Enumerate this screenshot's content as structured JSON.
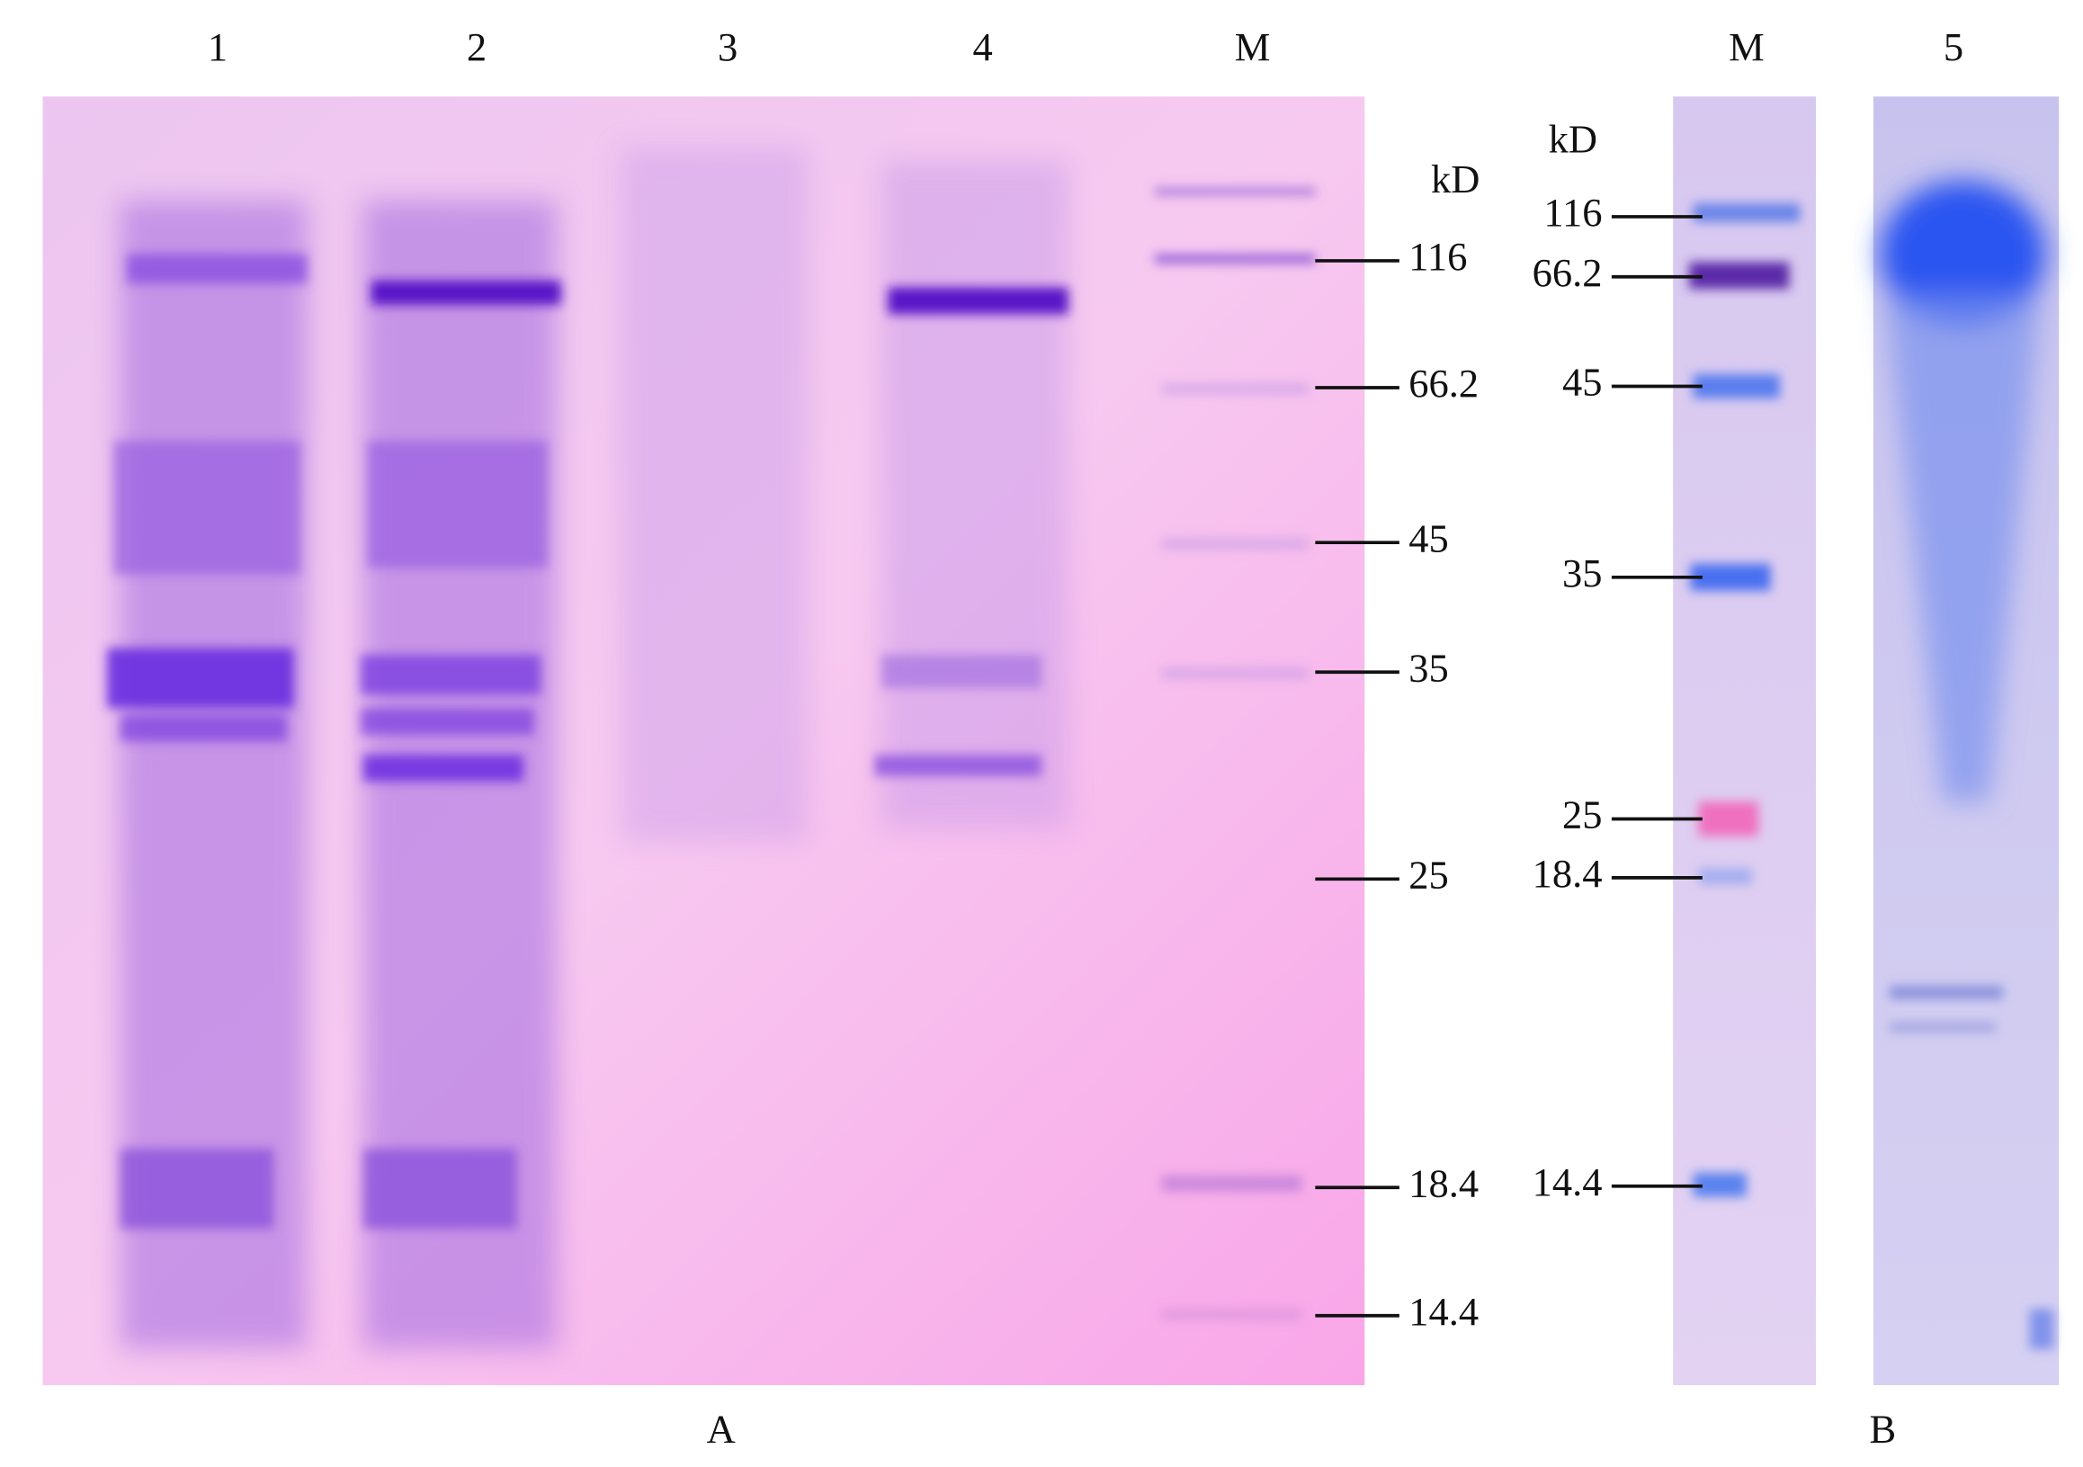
{
  "panel_a": {
    "lanes": [
      "1",
      "2",
      "3",
      "4",
      "M"
    ],
    "unit": "kD",
    "markers": [
      "116",
      "66.2",
      "45",
      "35",
      "25",
      "18.4",
      "14.4"
    ],
    "label": "A"
  },
  "panel_b": {
    "lanes": [
      "M",
      "5"
    ],
    "unit": "kD",
    "markers": [
      "116",
      "66.2",
      "45",
      "35",
      "25",
      "18.4",
      "14.4"
    ],
    "label": "B"
  }
}
